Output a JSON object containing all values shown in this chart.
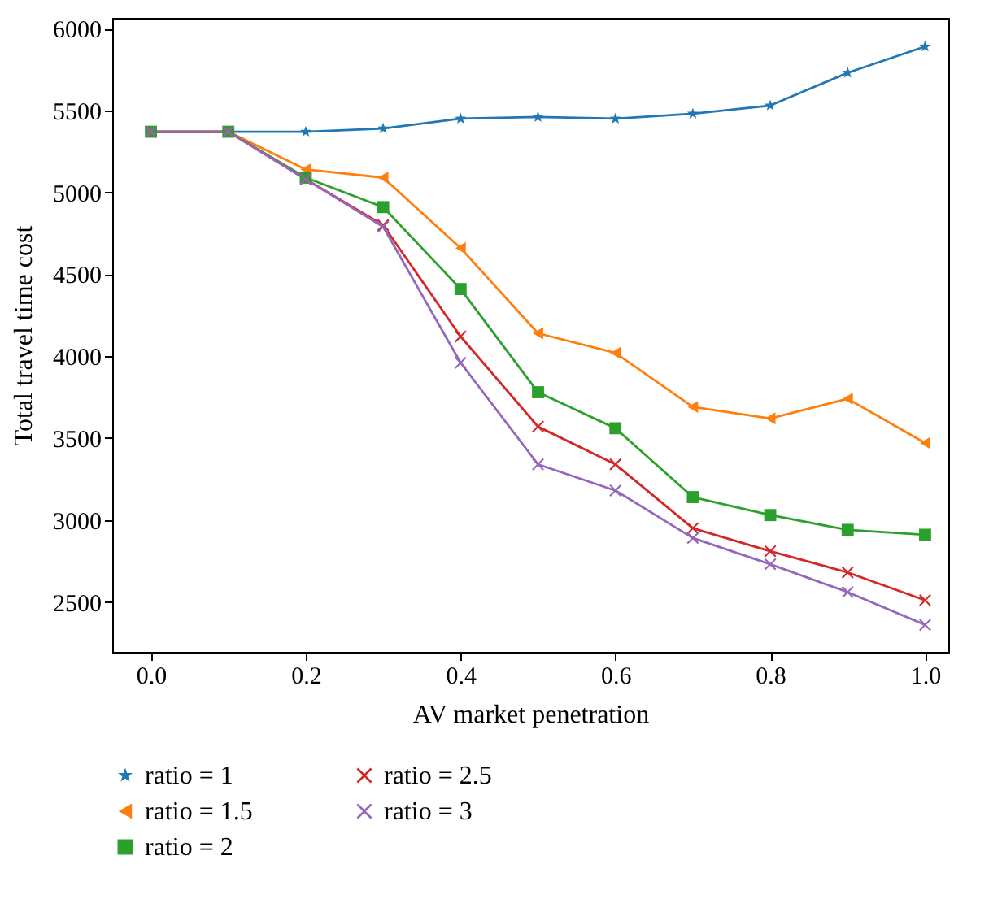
{
  "chart_data": {
    "type": "line",
    "xlabel": "AV market penetration",
    "ylabel": "Total travel time cost",
    "x": [
      0,
      0.1,
      0.2,
      0.3,
      0.4,
      0.5,
      0.6,
      0.7,
      0.8,
      0.9,
      1
    ],
    "series": [
      {
        "name": "ratio = 1",
        "color": "#1f77b4",
        "marker": "star",
        "values": [
          5370,
          5370,
          5370,
          5390,
          5450,
          5460,
          5450,
          5480,
          5530,
          5730,
          5890
        ]
      },
      {
        "name": "ratio = 1.5",
        "color": "#ff7f0e",
        "marker": "triangle",
        "values": [
          5370,
          5370,
          5140,
          5090,
          4660,
          4140,
          4020,
          3690,
          3620,
          3740,
          3470
        ]
      },
      {
        "name": "ratio = 2",
        "color": "#2ca02c",
        "marker": "square",
        "values": [
          5370,
          5370,
          5090,
          4910,
          4410,
          3780,
          3560,
          3140,
          3030,
          2940,
          2910
        ]
      },
      {
        "name": "ratio = 2.5",
        "color": "#d62728",
        "marker": "cross",
        "values": [
          5370,
          5370,
          5080,
          4800,
          4120,
          3570,
          3340,
          2950,
          2810,
          2680,
          2510
        ]
      },
      {
        "name": "ratio = 3",
        "color": "#9467bd",
        "marker": "cross",
        "values": [
          5370,
          5370,
          5080,
          4790,
          3960,
          3340,
          3180,
          2890,
          2730,
          2560,
          2360
        ]
      }
    ],
    "xlim": [
      -0.05,
      1.03
    ],
    "ylim": [
      2195,
      6065
    ],
    "xticks": [
      {
        "value": 0,
        "label": "0.0"
      },
      0.2,
      0.4,
      0.6,
      0.8,
      {
        "value": 1,
        "label": "1.0"
      }
    ],
    "yticks": [
      2500,
      3000,
      3500,
      4000,
      4500,
      5000,
      5500,
      6000
    ],
    "grid": false,
    "legend": "bottom"
  }
}
